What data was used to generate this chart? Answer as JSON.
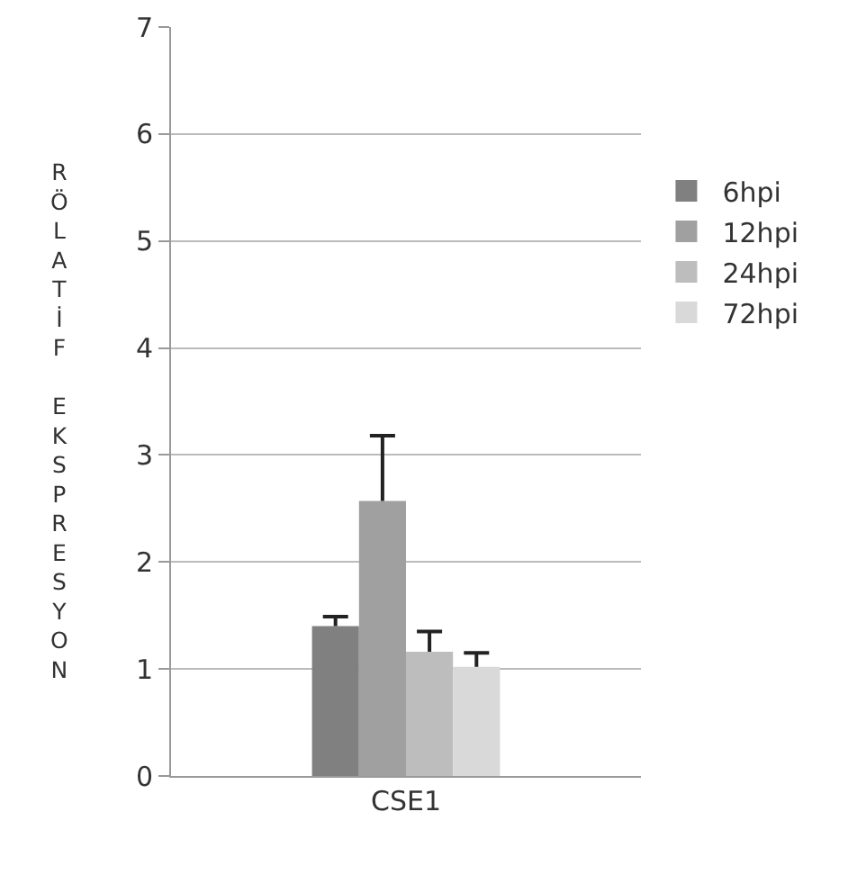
{
  "chart_data": {
    "type": "bar",
    "categories": [
      "CSE1"
    ],
    "ylabel": "RÖLATİF EKSPRESYON",
    "ylim": [
      0,
      7
    ],
    "yticks": [
      0,
      1,
      2,
      3,
      4,
      5,
      6,
      7
    ],
    "grid": "y",
    "legend": "right",
    "series": [
      {
        "name": "6hpi",
        "color": "#808080",
        "values": [
          1.4
        ],
        "errors": [
          [
            1.4,
            1.49
          ]
        ]
      },
      {
        "name": "12hpi",
        "color": "#a0a0a0",
        "values": [
          2.57
        ],
        "errors": [
          [
            2.57,
            3.18
          ]
        ]
      },
      {
        "name": "24hpi",
        "color": "#bdbdbd",
        "values": [
          1.16
        ],
        "errors": [
          [
            1.16,
            1.35
          ]
        ]
      },
      {
        "name": "72hpi",
        "color": "#d9d9d9",
        "values": [
          1.02
        ],
        "errors": [
          [
            1.02,
            1.15
          ]
        ]
      }
    ]
  }
}
